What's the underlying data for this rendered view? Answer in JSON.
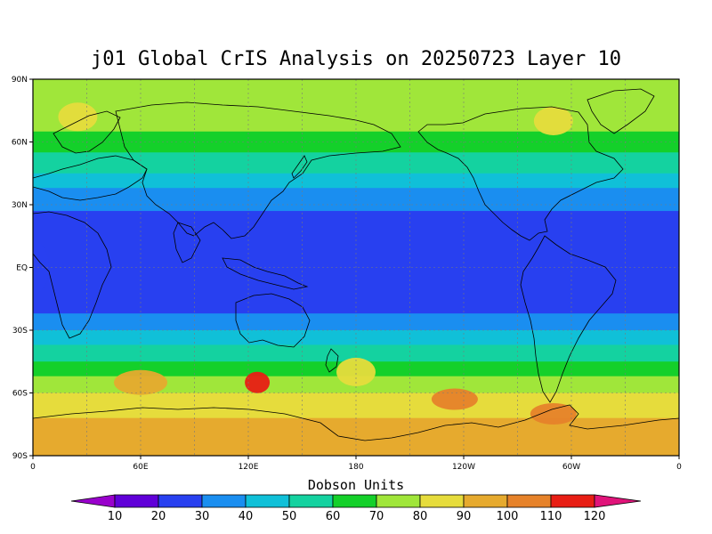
{
  "title": "j01 Global CrIS Analysis on 20250723 Layer 10",
  "colorbar_title": "Dobson Units",
  "lat_labels": [
    "90N",
    "60N",
    "30N",
    "EQ",
    "30S",
    "60S",
    "90S"
  ],
  "lon_labels": [
    "0",
    "60E",
    "120E",
    "180",
    "120W",
    "60W",
    "0"
  ],
  "colorbar": {
    "labels": [
      "10",
      "20",
      "30",
      "40",
      "50",
      "60",
      "70",
      "80",
      "90",
      "100",
      "110",
      "120"
    ],
    "colors": [
      "#9900cc",
      "#6000d8",
      "#2840f0",
      "#1a8ef0",
      "#10c0d8",
      "#14d2a0",
      "#14d02a",
      "#a0e63a",
      "#e6dc3c",
      "#e6aa2e",
      "#e6822a",
      "#e81e14",
      "#e0147a"
    ]
  },
  "chart_data": {
    "type": "heatmap",
    "title": "j01 Global CrIS Analysis on 20250723 Layer 10",
    "xlabel": "",
    "ylabel": "",
    "x_ticks": [
      "0",
      "60E",
      "120E",
      "180",
      "120W",
      "60W",
      "0"
    ],
    "y_ticks": [
      "90N",
      "60N",
      "30N",
      "EQ",
      "30S",
      "60S",
      "90S"
    ],
    "xlim": [
      0,
      360
    ],
    "ylim": [
      -90,
      90
    ],
    "colorbar_label": "Dobson Units",
    "levels": [
      10,
      20,
      30,
      40,
      50,
      60,
      70,
      80,
      90,
      100,
      110,
      120
    ],
    "grid": true,
    "zonal_bands": [
      {
        "lat_range": [
          65,
          90
        ],
        "value": 70
      },
      {
        "lat_range": [
          55,
          65
        ],
        "value": 60
      },
      {
        "lat_range": [
          45,
          55
        ],
        "value": 50
      },
      {
        "lat_range": [
          38,
          45
        ],
        "value": 40
      },
      {
        "lat_range": [
          27,
          38
        ],
        "value": 30
      },
      {
        "lat_range": [
          -22,
          27
        ],
        "value": 20
      },
      {
        "lat_range": [
          -30,
          -22
        ],
        "value": 30
      },
      {
        "lat_range": [
          -37,
          -30
        ],
        "value": 40
      },
      {
        "lat_range": [
          -45,
          -37
        ],
        "value": 50
      },
      {
        "lat_range": [
          -52,
          -45
        ],
        "value": 60
      },
      {
        "lat_range": [
          -60,
          -52
        ],
        "value": 70
      },
      {
        "lat_range": [
          -72,
          -60
        ],
        "value": 80
      },
      {
        "lat_range": [
          -90,
          -72
        ],
        "value": 90
      }
    ],
    "features": [
      {
        "lon": 0,
        "lat": 0,
        "value": 20
      },
      {
        "lon": 60,
        "lat": -55,
        "value": 90
      },
      {
        "lon": 125,
        "lat": -55,
        "value": 110
      },
      {
        "lon": 180,
        "lat": -50,
        "value": 80
      },
      {
        "lon": 235,
        "lat": -63,
        "value": 100
      },
      {
        "lon": 290,
        "lat": -70,
        "value": 100
      },
      {
        "lon": 290,
        "lat": 70,
        "value": 80
      },
      {
        "lon": 25,
        "lat": 72,
        "value": 80
      }
    ]
  }
}
